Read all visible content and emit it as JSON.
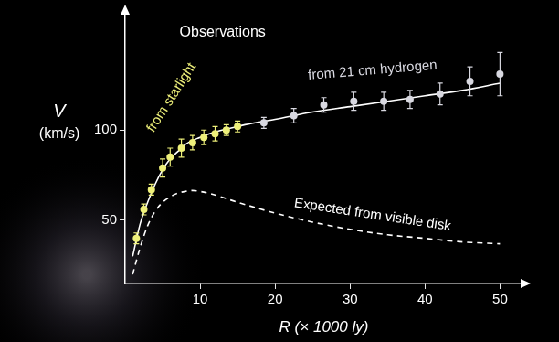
{
  "chart_data": {
    "type": "scatter",
    "title": "Observations",
    "xlabel": "R (× 1000 ly)",
    "ylabel": [
      "V",
      "(km/s)"
    ],
    "xlim": [
      0,
      53
    ],
    "ylim": [
      15,
      165
    ],
    "xticks": [
      10,
      20,
      30,
      40,
      50
    ],
    "yticks": [
      50,
      100
    ],
    "grid": false,
    "series": [
      {
        "type": "line",
        "color": "#ffffff",
        "line_style": "solid",
        "x": [
          1,
          2,
          3,
          4,
          5,
          6,
          7,
          8,
          10,
          12,
          14,
          16,
          20,
          25,
          30,
          35,
          40,
          45,
          50
        ],
        "values": [
          30,
          48,
          60,
          70,
          78,
          84,
          88,
          92,
          96,
          99,
          101,
          103,
          106,
          110,
          113,
          116,
          119,
          122,
          126
        ]
      },
      {
        "type": "line",
        "name": "Expected from visible disk",
        "color": "#ffffff",
        "line_style": "dashed",
        "x": [
          1,
          2,
          3,
          4,
          5,
          6,
          7,
          8,
          9,
          10,
          12,
          15,
          20,
          25,
          30,
          35,
          40,
          45,
          50
        ],
        "values": [
          20,
          35,
          47,
          55,
          60,
          63,
          65,
          66,
          66.5,
          66,
          64,
          60,
          54,
          49,
          45,
          42,
          40,
          38,
          37
        ]
      },
      {
        "type": "scatter",
        "name": "from starlight",
        "color": "#eef07a",
        "marker": "circle",
        "x": [
          1.5,
          2.5,
          3.5,
          5,
          6,
          7.5,
          9,
          10.5,
          12,
          13.5,
          15
        ],
        "values": [
          40,
          56,
          67,
          79,
          85,
          90,
          93,
          96,
          98,
          100,
          102
        ],
        "errors": [
          3,
          3,
          3,
          5,
          5,
          5,
          4,
          4,
          4,
          3,
          3
        ]
      },
      {
        "type": "scatter",
        "name": "from 21 cm hydrogen",
        "color": "#d8d8e0",
        "marker": "circle",
        "x": [
          18.5,
          22.5,
          26.5,
          30.5,
          34.5,
          38,
          42,
          46,
          50
        ],
        "values": [
          104,
          108,
          114,
          116,
          116,
          117,
          120,
          127,
          131
        ],
        "errors": [
          3,
          4,
          4,
          5,
          5,
          5,
          6,
          8,
          12
        ]
      }
    ]
  }
}
